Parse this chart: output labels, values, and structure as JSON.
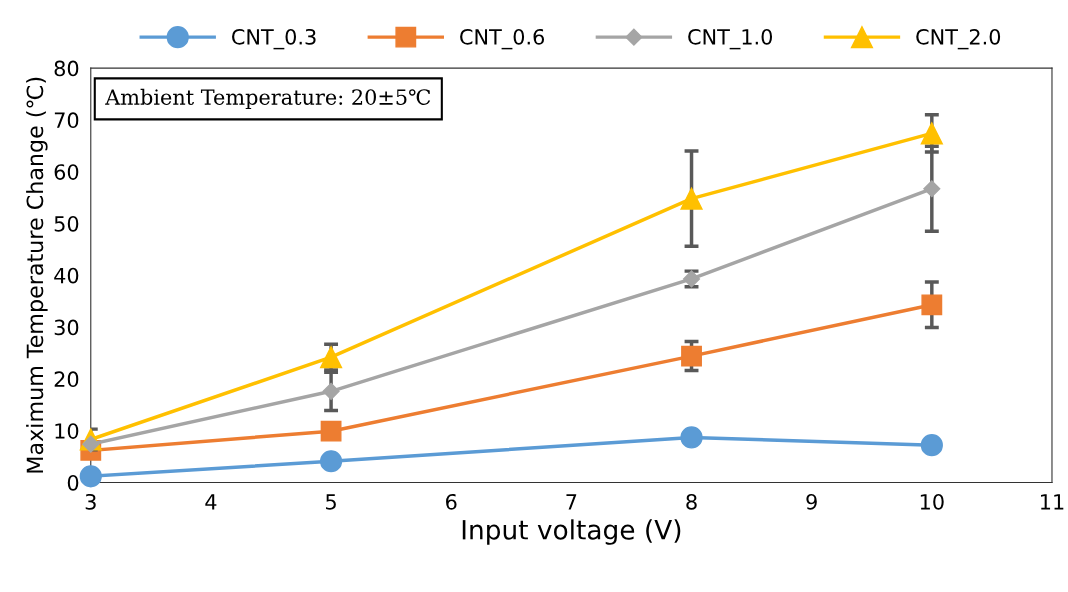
{
  "chart_data": {
    "type": "line",
    "xlabel": "Input voltage (V)",
    "ylabel": "Maximum Temperature Change (℃)",
    "annotations": [
      "Ambient Temperature: 20±5℃"
    ],
    "x": [
      3,
      5,
      8,
      10
    ],
    "series": [
      {
        "name": "CNT_0.3",
        "color": "#5b9bd5",
        "marker": "circle",
        "values": [
          1.2,
          4.1,
          8.7,
          7.2
        ]
      },
      {
        "name": "CNT_0.6",
        "color": "#ed7d31",
        "marker": "square",
        "values": [
          6.2,
          9.9,
          24.4,
          34.3
        ],
        "errors": [
          null,
          null,
          2.8,
          4.4
        ]
      },
      {
        "name": "CNT_1.0",
        "color": "#a5a5a5",
        "marker": "diamond",
        "values": [
          7.4,
          17.6,
          39.3,
          56.7
        ],
        "errors": [
          null,
          3.7,
          1.5,
          8.2
        ]
      },
      {
        "name": "CNT_2.0",
        "color": "#ffc000",
        "marker": "triangle",
        "values": [
          8.3,
          24.2,
          54.8,
          67.4
        ],
        "errors": [
          2.0,
          2.5,
          9.2,
          3.6
        ]
      }
    ],
    "xlim": [
      3,
      11
    ],
    "xticks": [
      3,
      4,
      5,
      6,
      7,
      8,
      9,
      10,
      11
    ],
    "ylim": [
      0,
      80
    ],
    "yticks": [
      0,
      10,
      20,
      30,
      40,
      50,
      60,
      70,
      80
    ],
    "grid": false,
    "legend": "top",
    "line_style": "solid"
  }
}
